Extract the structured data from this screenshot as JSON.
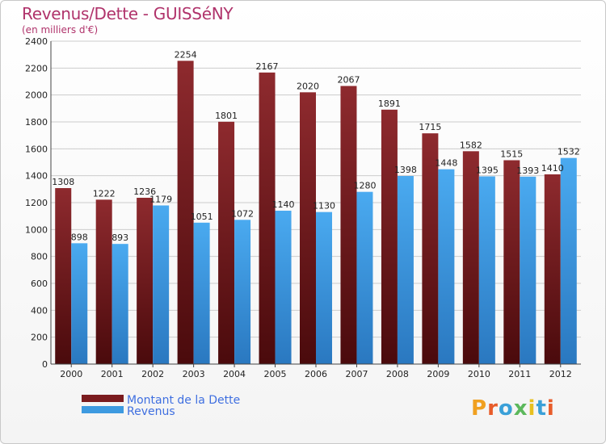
{
  "header": {
    "title": "Revenus/Dette - GUISSéNY",
    "subtitle": "(en milliers d'€)"
  },
  "brand": {
    "logo_letters": [
      "P",
      "r",
      "o",
      "x",
      "i",
      "t",
      "i"
    ]
  },
  "colors": {
    "dette": "#7a1b1e",
    "revenus": "#3d9ae0",
    "grid": "#cccccc"
  },
  "chart_data": {
    "type": "bar",
    "title": "Revenus/Dette - GUISSéNY",
    "subtitle": "(en milliers d'€)",
    "categories": [
      "2000",
      "2001",
      "2002",
      "2003",
      "2004",
      "2005",
      "2006",
      "2007",
      "2008",
      "2009",
      "2010",
      "2011",
      "2012"
    ],
    "series": [
      {
        "name": "Montant de la Dette",
        "values": [
          1308,
          1222,
          1236,
          2254,
          1801,
          2167,
          2020,
          2067,
          1891,
          1715,
          1582,
          1515,
          1410
        ]
      },
      {
        "name": "Revenus",
        "values": [
          898,
          893,
          1179,
          1051,
          1072,
          1140,
          1130,
          1280,
          1398,
          1448,
          1395,
          1393,
          1532
        ]
      }
    ],
    "yticks": [
      0,
      200,
      400,
      600,
      800,
      1000,
      1200,
      1400,
      1600,
      1800,
      2000,
      2200,
      2400
    ],
    "ylim": [
      0,
      2400
    ],
    "grid": true,
    "legend": "bottom-left"
  }
}
